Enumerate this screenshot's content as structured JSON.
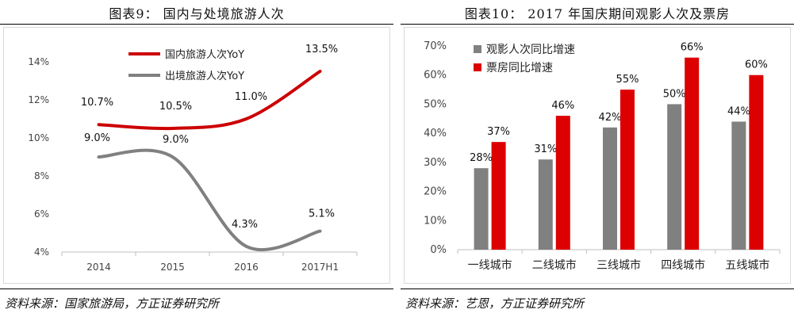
{
  "left": {
    "title": "图表9：  国内与处境旅游人次",
    "source": "资料来源：国家旅游局，方正证券研究所",
    "chart_data": {
      "type": "line",
      "categories": [
        "2014",
        "2015",
        "2016",
        "2017H1"
      ],
      "ylim": [
        4,
        14
      ],
      "yticks": [
        4,
        6,
        8,
        10,
        12,
        14
      ],
      "ytick_labels": [
        "4%",
        "6%",
        "8%",
        "10%",
        "12%",
        "14%"
      ],
      "legend_position": "top",
      "series": [
        {
          "name": "国内旅游人次YoY",
          "color": "#cc0000",
          "values": [
            10.7,
            10.5,
            11.0,
            13.5
          ],
          "labels": [
            "10.7%",
            "10.5%",
            "11.0%",
            "13.5%"
          ]
        },
        {
          "name": "出境旅游人次YoY",
          "color": "#808080",
          "values": [
            9.0,
            9.0,
            4.3,
            5.1
          ],
          "labels": [
            "9.0%",
            "9.0%",
            "4.3%",
            "5.1%"
          ]
        }
      ]
    }
  },
  "right": {
    "title": "图表10：  2017 年国庆期间观影人次及票房",
    "source": "资料来源：艺恩，方正证券研究所",
    "chart_data": {
      "type": "bar",
      "categories": [
        "一线城市",
        "二线城市",
        "三线城市",
        "四线城市",
        "五线城市"
      ],
      "ylim": [
        0,
        70
      ],
      "yticks": [
        0,
        10,
        20,
        30,
        40,
        50,
        60,
        70
      ],
      "ytick_labels": [
        "0%",
        "10%",
        "20%",
        "30%",
        "40%",
        "50%",
        "60%",
        "70%"
      ],
      "legend_position": "top-left",
      "series": [
        {
          "name": "观影人次同比增速",
          "color": "#808080",
          "values": [
            28,
            31,
            42,
            50,
            44
          ],
          "labels": [
            "28%",
            "31%",
            "42%",
            "50%",
            "44%"
          ]
        },
        {
          "name": "票房同比增速",
          "color": "#dd0000",
          "values": [
            37,
            46,
            55,
            66,
            60
          ],
          "labels": [
            "37%",
            "46%",
            "55%",
            "66%",
            "60%"
          ]
        }
      ]
    }
  }
}
